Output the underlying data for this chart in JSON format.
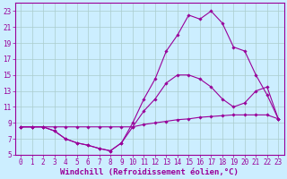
{
  "background_color": "#cceeff",
  "grid_color": "#aacccc",
  "line_color": "#990099",
  "marker_color": "#990099",
  "xlabel": "Windchill (Refroidissement éolien,°C)",
  "xlim": [
    -0.5,
    23.5
  ],
  "ylim": [
    5,
    24
  ],
  "xticks": [
    0,
    1,
    2,
    3,
    4,
    5,
    6,
    7,
    8,
    9,
    10,
    11,
    12,
    13,
    14,
    15,
    16,
    17,
    18,
    19,
    20,
    21,
    22,
    23
  ],
  "yticks": [
    5,
    7,
    9,
    11,
    13,
    15,
    17,
    19,
    21,
    23
  ],
  "line1_x": [
    0,
    1,
    2,
    3,
    4,
    5,
    6,
    7,
    8,
    9,
    10,
    11,
    12,
    13,
    14,
    15,
    16,
    17,
    18,
    19,
    20,
    21,
    22,
    23
  ],
  "line1_y": [
    8.5,
    8.5,
    8.5,
    8.5,
    8.5,
    8.5,
    8.5,
    8.5,
    8.5,
    8.5,
    8.5,
    8.8,
    9.0,
    9.2,
    9.4,
    9.5,
    9.7,
    9.8,
    9.9,
    10.0,
    10.0,
    10.0,
    10.0,
    9.5
  ],
  "line2_x": [
    0,
    1,
    2,
    3,
    4,
    5,
    6,
    7,
    8,
    9,
    10,
    11,
    12,
    13,
    14,
    15,
    16,
    17,
    18,
    19,
    20,
    21,
    22,
    23
  ],
  "line2_y": [
    8.5,
    8.5,
    8.5,
    8.0,
    7.0,
    6.5,
    6.2,
    5.8,
    5.5,
    6.5,
    8.5,
    10.5,
    12.0,
    14.0,
    15.0,
    15.0,
    14.5,
    13.5,
    12.0,
    11.0,
    11.5,
    13.0,
    13.5,
    9.5
  ],
  "line3_x": [
    0,
    1,
    2,
    3,
    4,
    5,
    6,
    7,
    8,
    9,
    10,
    11,
    12,
    13,
    14,
    15,
    16,
    17,
    18,
    19,
    20,
    21,
    22,
    23
  ],
  "line3_y": [
    8.5,
    8.5,
    8.5,
    8.0,
    7.0,
    6.5,
    6.2,
    5.8,
    5.5,
    6.5,
    9.0,
    12.0,
    14.5,
    18.0,
    20.0,
    22.5,
    22.0,
    23.0,
    21.5,
    18.5,
    18.0,
    15.0,
    12.5,
    9.5
  ],
  "tick_fontsize": 5.5,
  "label_fontsize": 6.5
}
